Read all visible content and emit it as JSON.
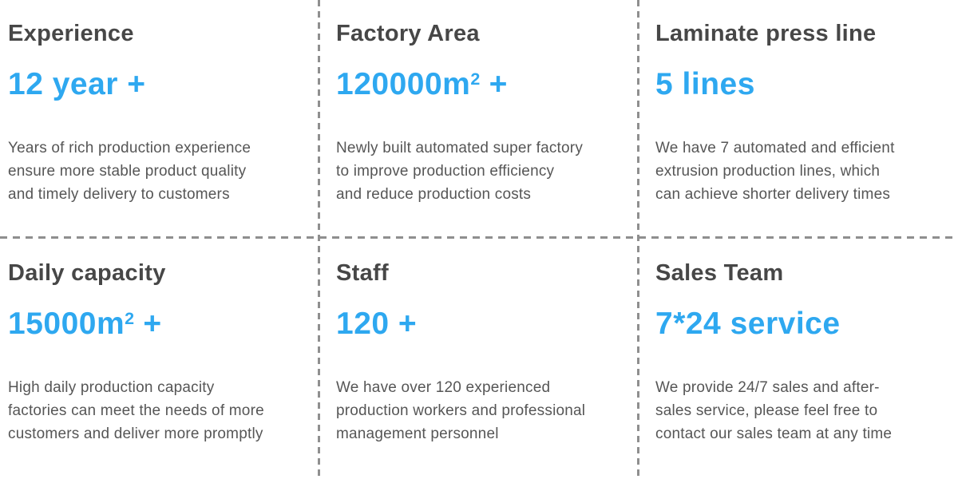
{
  "colors": {
    "background": "#ffffff",
    "accent_blue": "#2ea8f0",
    "heading_gray": "#474747",
    "body_text_gray": "#565656",
    "divider_gray": "#8f8f8f"
  },
  "cards": [
    {
      "title": "Experience",
      "value": "12 year +",
      "value_sup": "",
      "value_suffix": "",
      "desc_lines": [
        "Years of rich production experience",
        "ensure more stable product quality",
        "and timely delivery to customers"
      ]
    },
    {
      "title": "Factory Area",
      "value": "120000m",
      "value_sup": "2",
      "value_suffix": " +",
      "desc_lines": [
        "Newly built automated super factory",
        "to improve production efficiency",
        "and reduce production costs"
      ]
    },
    {
      "title": "Laminate press line",
      "value": "5 lines",
      "value_sup": "",
      "value_suffix": "",
      "desc_lines": [
        "We have 7 automated and efficient",
        "extrusion production lines, which",
        "can achieve shorter delivery times"
      ]
    },
    {
      "title": "Daily capacity",
      "value": "15000m",
      "value_sup": "2",
      "value_suffix": " +",
      "desc_lines": [
        "High daily production capacity",
        "factories can meet the needs of more",
        "customers and deliver more promptly"
      ]
    },
    {
      "title": "Staff",
      "value": "120 +",
      "value_sup": "",
      "value_suffix": "",
      "desc_lines": [
        "We have over 120 experienced",
        "production workers and professional",
        "management personnel"
      ]
    },
    {
      "title": "Sales Team",
      "value": "7*24 service",
      "value_sup": "",
      "value_suffix": "",
      "desc_lines": [
        "We provide 24/7 sales and after-",
        "sales service, please feel free to",
        "contact our sales team at any time"
      ]
    }
  ]
}
